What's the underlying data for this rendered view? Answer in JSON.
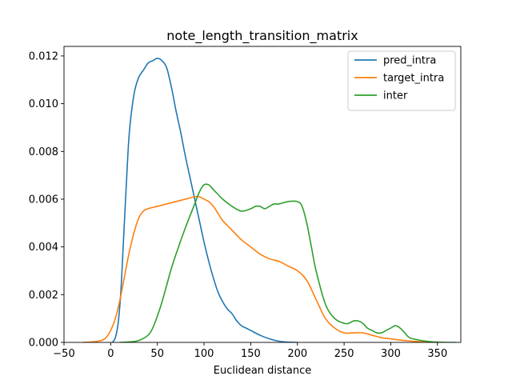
{
  "chart_data": {
    "type": "line",
    "title": "note_length_transition_matrix",
    "xlabel": "Euclidean distance",
    "ylabel": "",
    "xlim": [
      -50,
      375
    ],
    "ylim": [
      0,
      0.0124
    ],
    "xticks": [
      -50,
      0,
      50,
      100,
      150,
      200,
      250,
      300,
      350
    ],
    "xtick_labels": [
      "−50",
      "0",
      "50",
      "100",
      "150",
      "200",
      "250",
      "300",
      "350"
    ],
    "yticks": [
      0,
      0.002,
      0.004,
      0.006,
      0.008,
      0.01,
      0.012
    ],
    "ytick_labels": [
      "0.000",
      "0.002",
      "0.004",
      "0.006",
      "0.008",
      "0.010",
      "0.012"
    ],
    "grid": false,
    "legend_position": "top-right",
    "series": [
      {
        "name": "pred_intra",
        "color": "#1f77b4",
        "x": [
          2,
          5,
          8,
          11,
          14,
          17,
          20,
          25,
          30,
          35,
          40,
          45,
          50,
          55,
          60,
          65,
          70,
          75,
          80,
          85,
          90,
          95,
          100,
          105,
          110,
          115,
          120,
          125,
          130,
          135,
          140,
          145,
          150,
          160,
          170,
          180,
          190,
          200
        ],
        "y": [
          0.0,
          0.0002,
          0.0008,
          0.0022,
          0.0045,
          0.0068,
          0.0088,
          0.0104,
          0.0111,
          0.0114,
          0.0117,
          0.0118,
          0.0119,
          0.0118,
          0.0115,
          0.0107,
          0.0097,
          0.0088,
          0.0078,
          0.0069,
          0.006,
          0.0051,
          0.0042,
          0.0034,
          0.0027,
          0.0021,
          0.0017,
          0.0014,
          0.0012,
          0.0009,
          0.0007,
          0.0006,
          0.0005,
          0.0003,
          0.00015,
          5e-05,
          1e-05,
          0.0
        ]
      },
      {
        "name": "target_intra",
        "color": "#ff7f0e",
        "x": [
          -30,
          -20,
          -10,
          -5,
          0,
          5,
          10,
          15,
          20,
          25,
          30,
          35,
          40,
          50,
          60,
          70,
          80,
          90,
          95,
          100,
          105,
          110,
          115,
          120,
          130,
          140,
          150,
          160,
          170,
          180,
          190,
          200,
          210,
          220,
          230,
          240,
          250,
          260,
          270,
          280,
          290,
          300,
          310,
          320,
          330,
          340,
          350
        ],
        "y": [
          0.0,
          2e-05,
          8e-05,
          0.0002,
          0.0005,
          0.001,
          0.0018,
          0.0028,
          0.0038,
          0.0046,
          0.0052,
          0.0055,
          0.0056,
          0.0057,
          0.0058,
          0.0059,
          0.006,
          0.0061,
          0.0061,
          0.006,
          0.0059,
          0.0057,
          0.0054,
          0.0051,
          0.0047,
          0.0043,
          0.004,
          0.0037,
          0.0035,
          0.0034,
          0.0032,
          0.003,
          0.0026,
          0.0018,
          0.001,
          0.0006,
          0.0004,
          0.0004,
          0.0004,
          0.0003,
          0.0002,
          0.00015,
          0.0001,
          6e-05,
          3e-05,
          1e-05,
          0.0
        ]
      },
      {
        "name": "inter",
        "color": "#2ca02c",
        "x": [
          10,
          20,
          30,
          40,
          45,
          50,
          55,
          60,
          65,
          70,
          80,
          90,
          95,
          100,
          105,
          110,
          115,
          120,
          130,
          140,
          150,
          155,
          160,
          165,
          170,
          175,
          180,
          190,
          200,
          205,
          210,
          215,
          220,
          230,
          240,
          250,
          255,
          260,
          265,
          270,
          275,
          280,
          285,
          290,
          295,
          300,
          305,
          310,
          315,
          320,
          330,
          340,
          350,
          360,
          370
        ],
        "y": [
          0.0,
          2e-05,
          8e-05,
          0.0003,
          0.0006,
          0.0011,
          0.0017,
          0.0024,
          0.0031,
          0.0037,
          0.0048,
          0.0058,
          0.0063,
          0.0066,
          0.0066,
          0.0064,
          0.0062,
          0.006,
          0.0057,
          0.0055,
          0.0056,
          0.0057,
          0.0057,
          0.0056,
          0.0057,
          0.0058,
          0.0058,
          0.0059,
          0.0059,
          0.0057,
          0.005,
          0.004,
          0.003,
          0.0016,
          0.001,
          0.0008,
          0.0008,
          0.0009,
          0.0009,
          0.0008,
          0.0006,
          0.0005,
          0.0004,
          0.0004,
          0.0005,
          0.0006,
          0.0007,
          0.0006,
          0.0004,
          0.0002,
          0.0001,
          4e-05,
          1e-05,
          0.0,
          0.0
        ]
      }
    ]
  }
}
